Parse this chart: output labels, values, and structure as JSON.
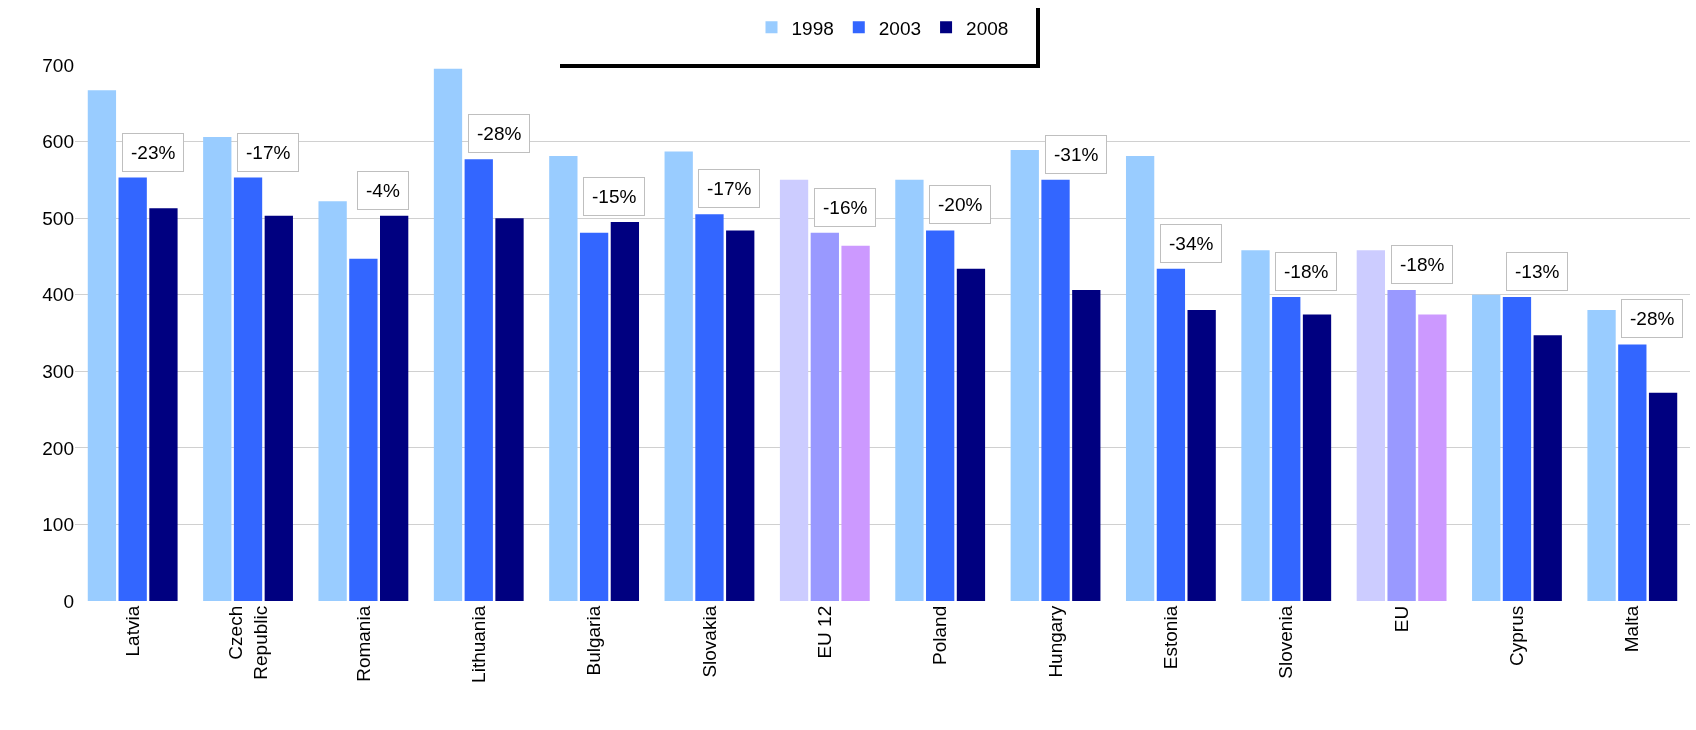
{
  "chart_data": {
    "type": "bar",
    "categories": [
      "Latvia",
      "Czech Republic",
      "Romania",
      "Lithuania",
      "Bulgaria",
      "Slovakia",
      "EU 12",
      "Poland",
      "Hungary",
      "Estonia",
      "Slovenia",
      "EU",
      "Cyprus",
      "Malta"
    ],
    "series": [
      {
        "name": "1998",
        "color": "#99ccff",
        "colors": [
          null,
          null,
          null,
          null,
          null,
          null,
          "#ccccff",
          null,
          null,
          null,
          null,
          "#ccccff",
          null,
          null
        ],
        "values": [
          667,
          606,
          522,
          695,
          581,
          587,
          550,
          550,
          589,
          581,
          458,
          458,
          400,
          380
        ]
      },
      {
        "name": "2003",
        "color": "#3366ff",
        "colors": [
          null,
          null,
          null,
          null,
          null,
          null,
          "#9999ff",
          null,
          null,
          null,
          null,
          "#9999ff",
          null,
          null
        ],
        "values": [
          553,
          553,
          447,
          577,
          481,
          505,
          481,
          484,
          550,
          434,
          397,
          406,
          397,
          335
        ]
      },
      {
        "name": "2008",
        "color": "#000080",
        "colors": [
          null,
          null,
          null,
          null,
          null,
          null,
          "#cc99ff",
          null,
          null,
          null,
          null,
          "#cc99ff",
          null,
          null
        ],
        "values": [
          513,
          503,
          503,
          500,
          495,
          484,
          464,
          434,
          406,
          380,
          374,
          374,
          347,
          272
        ]
      }
    ],
    "annotations": [
      "-23%",
      "-17%",
      "-4%",
      "-28%",
      "-15%",
      "-17%",
      "-16%",
      "-20%",
      "-31%",
      "-34%",
      "-18%",
      "-18%",
      "-13%",
      "-28%"
    ],
    "ylim": [
      0,
      700
    ],
    "yticks": [
      0,
      100,
      200,
      300,
      400,
      500,
      600,
      700
    ],
    "grid": "y",
    "legend": "top"
  }
}
